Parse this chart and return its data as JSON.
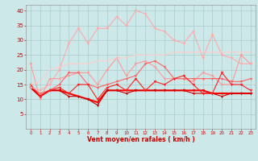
{
  "x": [
    0,
    1,
    2,
    3,
    4,
    5,
    6,
    7,
    8,
    9,
    10,
    11,
    12,
    13,
    14,
    15,
    16,
    17,
    18,
    19,
    20,
    21,
    22,
    23
  ],
  "series": [
    {
      "y": [
        22,
        10,
        17,
        17,
        18,
        19,
        19,
        15,
        20,
        24,
        18,
        22,
        23,
        21,
        17,
        17,
        17,
        16,
        19,
        18,
        15,
        15,
        25,
        22
      ],
      "color": "#ff9999",
      "lw": 0.8,
      "marker": "v",
      "ms": 2.0
    },
    {
      "y": [
        14,
        12,
        13,
        15,
        19,
        19,
        15,
        14,
        15,
        16,
        17,
        18,
        22,
        23,
        21,
        17,
        17,
        17,
        17,
        17,
        17,
        16,
        16,
        17
      ],
      "color": "#ff6666",
      "lw": 0.8,
      "marker": "v",
      "ms": 2.0
    },
    {
      "y": [
        14,
        11,
        13,
        13,
        12,
        11,
        10,
        9,
        13,
        13,
        13,
        13,
        13,
        13,
        13,
        13,
        13,
        13,
        13,
        12,
        12,
        12,
        12,
        12
      ],
      "color": "#ff0000",
      "lw": 1.5,
      "marker": "v",
      "ms": 2.0
    },
    {
      "y": [
        14,
        11,
        13,
        13,
        11,
        11,
        10,
        8,
        13,
        13,
        12,
        13,
        13,
        13,
        13,
        13,
        13,
        12,
        12,
        12,
        11,
        12,
        12,
        12
      ],
      "color": "#cc0000",
      "lw": 0.8,
      "marker": "v",
      "ms": 2.0
    },
    {
      "y": [
        15,
        11,
        13,
        14,
        12,
        15,
        15,
        10,
        14,
        15,
        13,
        17,
        13,
        16,
        15,
        17,
        18,
        15,
        12,
        12,
        19,
        15,
        15,
        13
      ],
      "color": "#ff2222",
      "lw": 0.8,
      "marker": "v",
      "ms": 2.0
    },
    {
      "y": [
        14,
        13,
        15,
        20,
        29,
        34,
        29,
        34,
        34,
        38,
        35,
        40,
        39,
        34,
        33,
        30,
        29,
        33,
        24,
        32,
        25,
        24,
        22,
        22
      ],
      "color": "#ffaaaa",
      "lw": 0.8,
      "marker": "v",
      "ms": 2.0
    },
    {
      "y": [
        15,
        16,
        20,
        21,
        22,
        22,
        22,
        23,
        23,
        24,
        24,
        25,
        25,
        25,
        25,
        26,
        26,
        26,
        26,
        26,
        26,
        26,
        26,
        26
      ],
      "color": "#ffcccc",
      "lw": 0.8,
      "marker": null,
      "ms": 0
    }
  ],
  "xlabel": "Vent moyen/en rafales ( km/h )",
  "xlim": [
    -0.5,
    23.5
  ],
  "ylim": [
    0,
    42
  ],
  "yticks": [
    5,
    10,
    15,
    20,
    25,
    30,
    35,
    40
  ],
  "xticks": [
    0,
    1,
    2,
    3,
    4,
    5,
    6,
    7,
    8,
    9,
    10,
    11,
    12,
    13,
    14,
    15,
    16,
    17,
    18,
    19,
    20,
    21,
    22,
    23
  ],
  "bg_color": "#cce8e8",
  "grid_color": "#aacccc",
  "xlabel_color": "#cc0000",
  "tick_color": "#cc0000"
}
